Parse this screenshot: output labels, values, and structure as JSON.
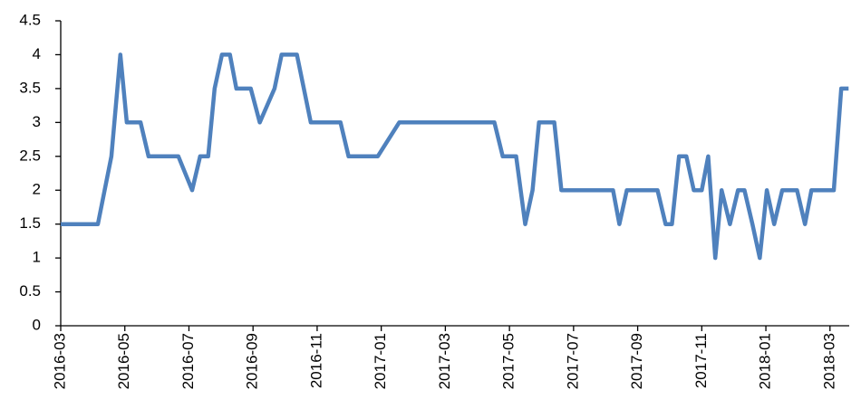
{
  "chart_data": {
    "type": "line",
    "x": [
      0,
      1.16,
      1.58,
      1.86,
      2.06,
      2.49,
      2.74,
      3.67,
      4.1,
      4.35,
      4.6,
      4.8,
      5.03,
      5.28,
      5.48,
      5.93,
      6.21,
      6.67,
      6.89,
      7.37,
      7.8,
      8.73,
      8.98,
      9.89,
      10.56,
      13.53,
      13.79,
      14.21,
      14.49,
      14.72,
      14.92,
      15.4,
      15.62,
      17.23,
      17.43,
      17.66,
      18.62,
      18.87,
      19.07,
      19.29,
      19.52,
      19.75,
      20.0,
      20.2,
      20.42,
      20.62,
      20.88,
      21.13,
      21.33,
      21.58,
      21.81,
      22.03,
      22.26,
      22.51,
      22.97,
      23.22,
      23.42,
      24.12,
      24.35,
      24.58
    ],
    "series": [
      {
        "color": "#4f81bd",
        "values": [
          1.5,
          1.5,
          2.5,
          4,
          3,
          3,
          2.5,
          2.5,
          2,
          2.5,
          2.5,
          3.5,
          4,
          4,
          3.5,
          3.5,
          3,
          3.5,
          4,
          4,
          3,
          3,
          2.5,
          2.5,
          3,
          3,
          2.5,
          2.5,
          1.5,
          2,
          3,
          3,
          2,
          2,
          1.5,
          2,
          2,
          1.5,
          1.5,
          2.5,
          2.5,
          2,
          2,
          2.5,
          1,
          2,
          1.5,
          2,
          2,
          1.5,
          1,
          2,
          1.5,
          2,
          2,
          1.5,
          2,
          2,
          3.5,
          3.5
        ]
      }
    ],
    "xlim": [
      0,
      24.6
    ],
    "xticks": [
      {
        "value": 0,
        "label": "2016-03"
      },
      {
        "value": 2,
        "label": "2016-05"
      },
      {
        "value": 4,
        "label": "2016-07"
      },
      {
        "value": 6,
        "label": "2016-09"
      },
      {
        "value": 8,
        "label": "2016-11"
      },
      {
        "value": 10,
        "label": "2017-01"
      },
      {
        "value": 12,
        "label": "2017-03"
      },
      {
        "value": 14,
        "label": "2017-05"
      },
      {
        "value": 16,
        "label": "2017-07"
      },
      {
        "value": 18,
        "label": "2017-09"
      },
      {
        "value": 20,
        "label": "2017-11"
      },
      {
        "value": 22,
        "label": "2018-01"
      },
      {
        "value": 24,
        "label": "2018-03"
      }
    ],
    "ylim": [
      0,
      4.5
    ],
    "yticks": [
      0,
      0.5,
      1,
      1.5,
      2,
      2.5,
      3,
      3.5,
      4,
      4.5
    ],
    "grid": false
  }
}
